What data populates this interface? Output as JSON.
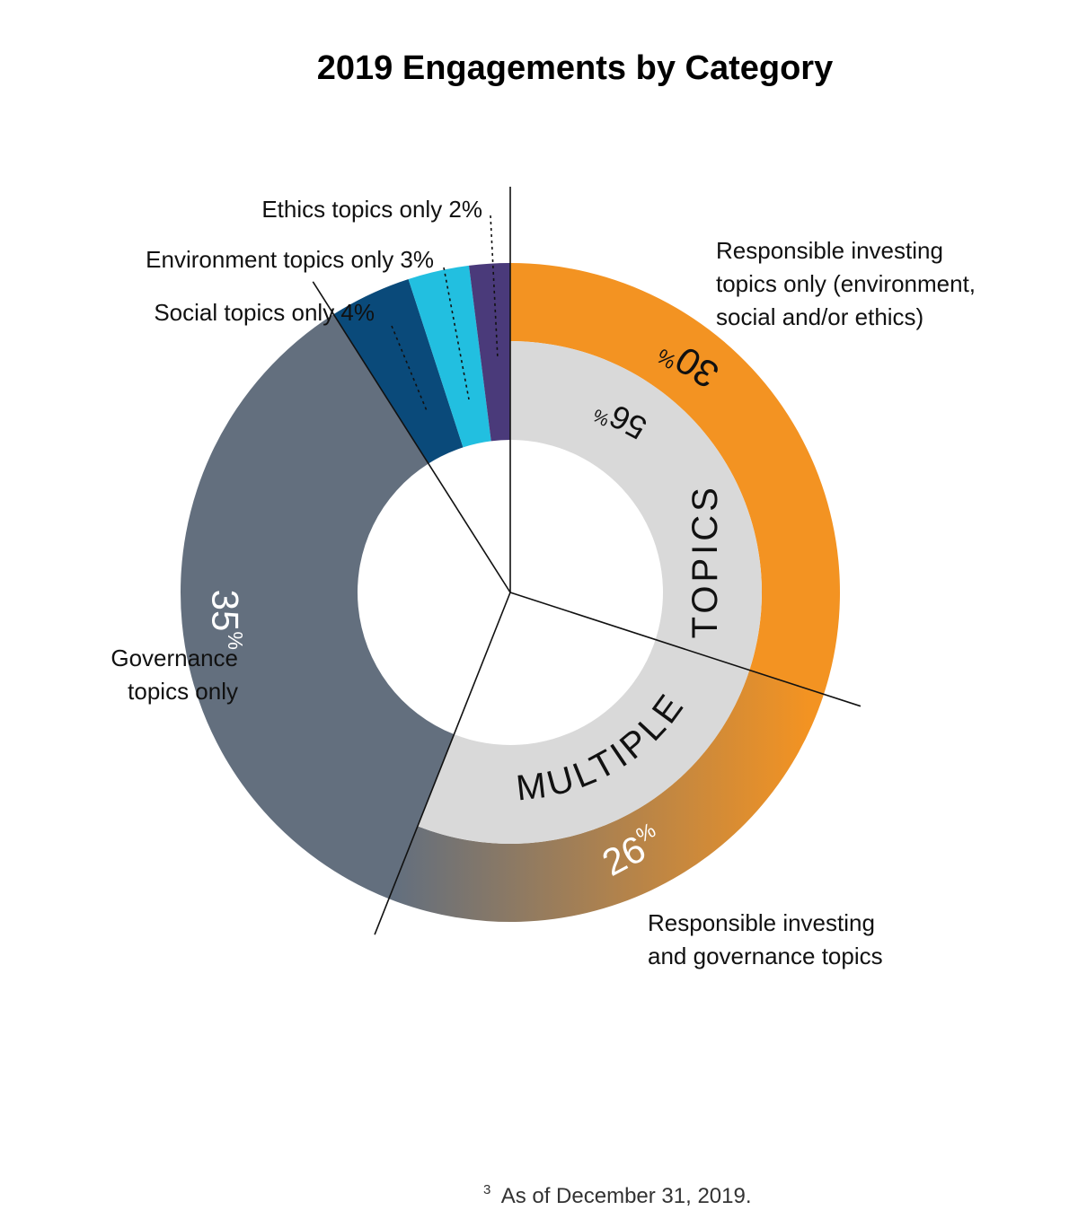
{
  "chart_data": {
    "type": "pie",
    "title": "2019 Engagements by Category",
    "slices": [
      {
        "key": "ethics",
        "label": "Ethics topics only 2%",
        "value": 2,
        "color": "#4a3a7a"
      },
      {
        "key": "environment",
        "label": "Environment topics only 3%",
        "value": 3,
        "color": "#22bfe0"
      },
      {
        "key": "social",
        "label": "Social topics only 4%",
        "value": 4,
        "color": "#0a4a7a"
      },
      {
        "key": "governance",
        "label": "Governance topics only",
        "value": 35,
        "display": "35",
        "color": "#636f7e"
      },
      {
        "key": "ri_gov",
        "label": "Responsible investing and governance topics",
        "value": 26,
        "display": "26",
        "color_from": "#636f7e",
        "color_to": "#f39322"
      },
      {
        "key": "ri_only",
        "label": "Responsible investing topics only (environment, social and/or ethics)",
        "value": 30,
        "display": "30",
        "color": "#f39322"
      }
    ],
    "inner_ring": {
      "label": "MULTIPLE TOPICS",
      "value": 56,
      "display": "56",
      "color": "#d9d9d9"
    },
    "percent_sign": "%"
  },
  "labels": {
    "ethics": "Ethics topics only 2%",
    "environment": "Environment topics only 3%",
    "social": "Social topics only 4%",
    "governance_lines": [
      "Governance",
      "topics only"
    ],
    "ri_only_lines": [
      "Responsible investing",
      "topics only (environment,",
      "social and/or ethics)"
    ],
    "ri_gov_lines": [
      "Responsible investing",
      "and governance topics"
    ],
    "multiple_word1": "MULTIPLE",
    "multiple_word2": "TOPICS"
  },
  "footnote": {
    "mark": "3",
    "text": "As of December 31, 2019."
  }
}
